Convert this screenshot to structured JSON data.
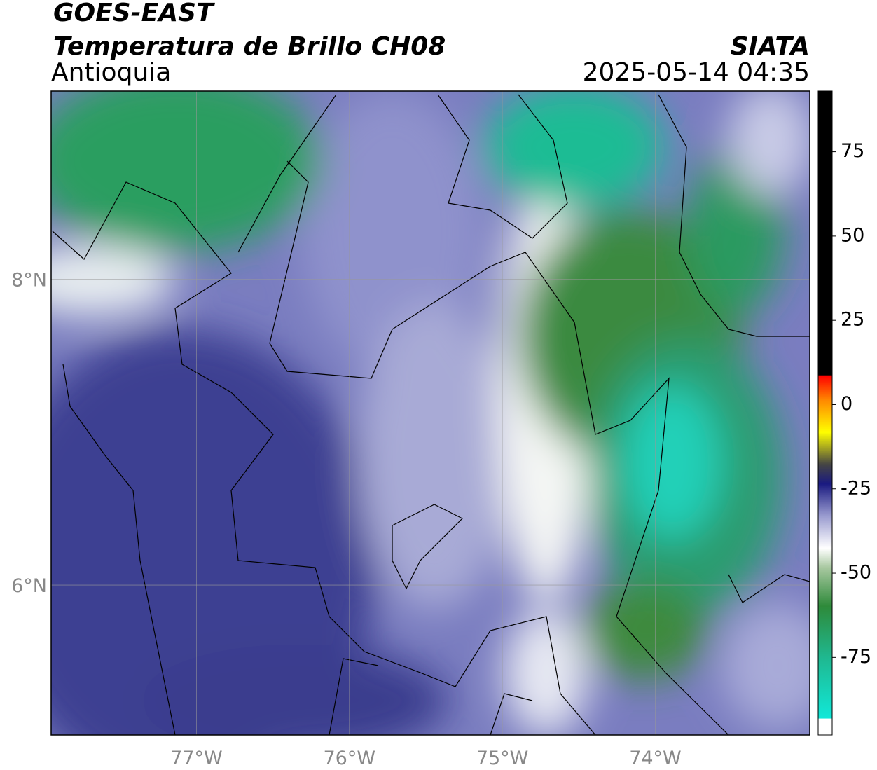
{
  "header": {
    "title": "GOES-EAST",
    "subtitle": "Temperatura de Brillo CH08",
    "region": "Antioquia",
    "source": "SIATA",
    "timestamp": "2025-05-14 04:35"
  },
  "map": {
    "xlim": [
      -77.95,
      -72.99
    ],
    "ylim": [
      5.02,
      9.23
    ],
    "xticks": [
      {
        "value": -77,
        "label": "77°W"
      },
      {
        "value": -76,
        "label": "76°W"
      },
      {
        "value": -75,
        "label": "75°W"
      },
      {
        "value": -74,
        "label": "74°W"
      }
    ],
    "yticks": [
      {
        "value": 8,
        "label": "8°N"
      },
      {
        "value": 6,
        "label": "6°N"
      }
    ]
  },
  "colorbar": {
    "clim": [
      -98,
      93
    ],
    "ticks": [
      75,
      50,
      25,
      0,
      -25,
      -50,
      -75
    ]
  }
}
